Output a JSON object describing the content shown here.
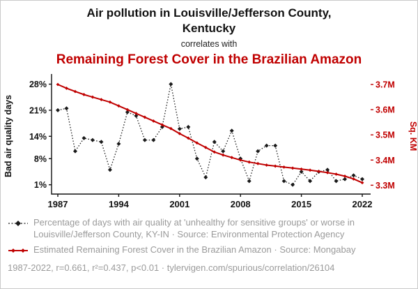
{
  "colors": {
    "accent_red": "#c00000",
    "series_black": "#1a1a1a",
    "legend_gray": "#9a9a9a"
  },
  "header": {
    "title": "Air pollution in Louisville/Jefferson County, Kentucky",
    "connector": "correlates with",
    "subtitle": "Remaining Forest Cover in the Brazilian Amazon"
  },
  "legend": {
    "series1": "Percentage of days with air quality at 'unhealthy for sensitive groups' or worse in Louisville/Jefferson County, KY-IN · Source: Environmental Protection Agency",
    "series2": "Estimated Remaining Forest Cover in the Brazilian Amazon · Source: Mongabay"
  },
  "footer": {
    "text": "1987-2022, r=0.661, r²=0.437, p<0.01 · tylervigen.com/spurious/correlation/26104"
  },
  "chart_data": {
    "type": "line",
    "title": "Air pollution in Louisville/Jefferson County, Kentucky correlates with Remaining Forest Cover in the Brazilian Amazon",
    "x_range": [
      1987,
      2022
    ],
    "x_ticks": [
      1987,
      1994,
      2001,
      2008,
      2015,
      2022
    ],
    "x": [
      1987,
      1988,
      1989,
      1990,
      1991,
      1992,
      1993,
      1994,
      1995,
      1996,
      1997,
      1998,
      1999,
      2000,
      2001,
      2002,
      2003,
      2004,
      2005,
      2006,
      2007,
      2008,
      2009,
      2010,
      2011,
      2012,
      2013,
      2014,
      2015,
      2016,
      2017,
      2018,
      2019,
      2020,
      2021,
      2022
    ],
    "left_axis": {
      "title": "Bad air quality days",
      "ylim": [
        -1.5,
        29.6
      ],
      "ticks": [
        {
          "value": 1,
          "label": "1%"
        },
        {
          "value": 8,
          "label": "8%"
        },
        {
          "value": 14,
          "label": "14%"
        },
        {
          "value": 21,
          "label": "21%"
        },
        {
          "value": 28,
          "label": "28%"
        }
      ]
    },
    "right_axis": {
      "title": "Sq. KM",
      "ylim": [
        3.265,
        3.725
      ],
      "ticks": [
        {
          "value": 3.3,
          "label": "3.3M"
        },
        {
          "value": 3.4,
          "label": "3.4M"
        },
        {
          "value": 3.5,
          "label": "3.5M"
        },
        {
          "value": 3.6,
          "label": "3.6M"
        },
        {
          "value": 3.7,
          "label": "3.7M"
        }
      ]
    },
    "series": [
      {
        "name": "Percentage of days with air quality at 'unhealthy for sensitive groups' or worse in Louisville/Jefferson County, KY-IN",
        "axis": "left",
        "color": "#1a1a1a",
        "dash": "1.5 2.5",
        "width": 1.3,
        "marker": 3,
        "values": [
          21,
          21.5,
          10,
          13.5,
          13,
          12.5,
          5,
          12,
          20.5,
          19.5,
          13,
          13,
          16.5,
          28,
          16,
          16.5,
          8,
          3,
          12.5,
          10,
          15.5,
          8,
          2,
          10,
          11.5,
          11.5,
          2,
          1,
          4.5,
          2,
          4.5,
          5,
          2,
          2.5,
          3.5,
          2.5
        ]
      },
      {
        "name": "Estimated Remaining Forest Cover in the Brazilian Amazon",
        "axis": "right",
        "color": "#c00000",
        "dash": null,
        "width": 2,
        "marker": 2.4,
        "values": [
          3.7,
          3.685,
          3.672,
          3.66,
          3.65,
          3.64,
          3.63,
          3.615,
          3.6,
          3.585,
          3.57,
          3.555,
          3.54,
          3.525,
          3.505,
          3.487,
          3.468,
          3.45,
          3.432,
          3.42,
          3.41,
          3.4,
          3.392,
          3.386,
          3.38,
          3.376,
          3.372,
          3.368,
          3.364,
          3.36,
          3.355,
          3.35,
          3.344,
          3.336,
          3.325,
          3.31
        ]
      }
    ]
  }
}
